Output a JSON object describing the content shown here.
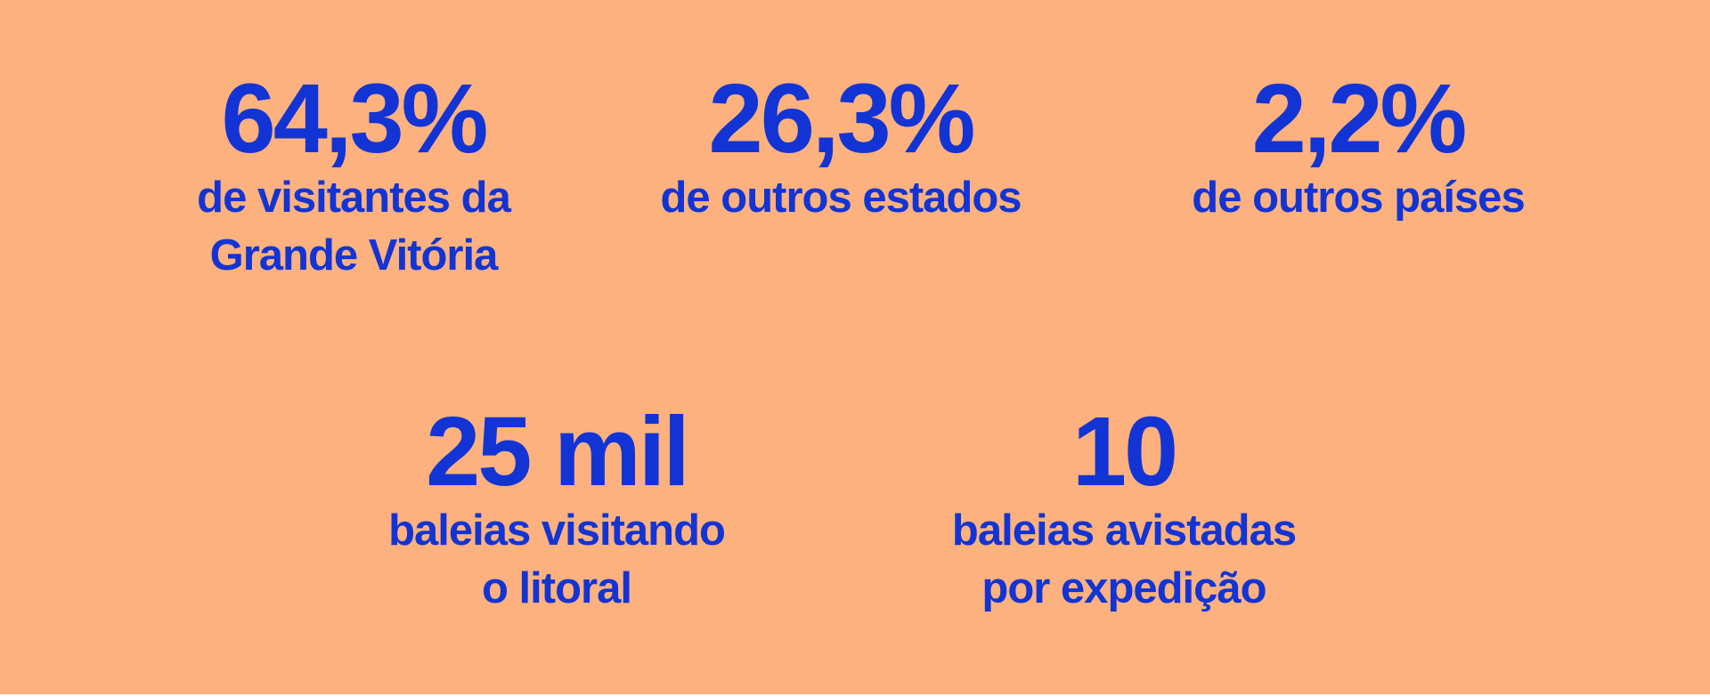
{
  "page": {
    "background_color": "#FCB17E",
    "text_color": "#1334D4"
  },
  "stats": [
    {
      "value": "64,3%",
      "label_line1": "de visitantes da",
      "label_line2": "Grande Vitória"
    },
    {
      "value": "26,3%",
      "label_line1": "de outros estados",
      "label_line2": ""
    },
    {
      "value": "2,2%",
      "label_line1": "de outros países",
      "label_line2": ""
    },
    {
      "value": "25 mil",
      "label_line1": "baleias visitando",
      "label_line2": "o litoral"
    },
    {
      "value": "10",
      "label_line1": "baleias avistadas",
      "label_line2": "por expedição"
    }
  ],
  "chart_data": {
    "type": "table",
    "title": "",
    "items": [
      {
        "value_text": "64,3%",
        "numeric_value": 64.3,
        "unit": "%",
        "label": "de visitantes da Grande Vitória"
      },
      {
        "value_text": "26,3%",
        "numeric_value": 26.3,
        "unit": "%",
        "label": "de outros estados"
      },
      {
        "value_text": "2,2%",
        "numeric_value": 2.2,
        "unit": "%",
        "label": "de outros países"
      },
      {
        "value_text": "25 mil",
        "numeric_value": 25000,
        "unit": "whales",
        "label": "baleias visitando o litoral"
      },
      {
        "value_text": "10",
        "numeric_value": 10,
        "unit": "whales",
        "label": "baleias avistadas por expedição"
      }
    ],
    "layout": "two rows of big-number stats; top row 3 items, bottom row 2 items",
    "colors": {
      "background": "#FCB17E",
      "text": "#1334D4"
    }
  }
}
